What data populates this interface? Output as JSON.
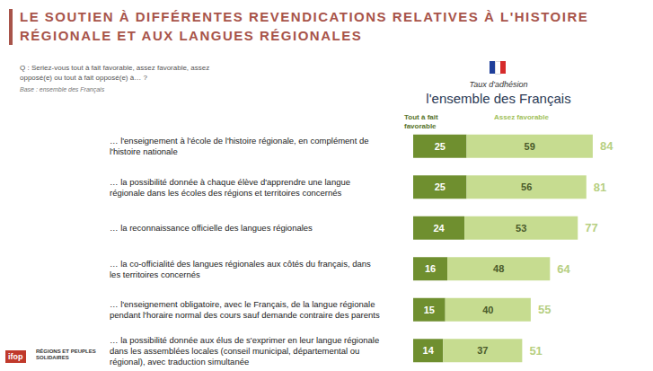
{
  "chart_data": {
    "type": "bar",
    "orientation": "horizontal",
    "stacked": true,
    "data_labels": true,
    "tick_labels": false,
    "grid": false,
    "title": "LE SOUTIEN À DIFFÉRENTES REVENDICATIONS RELATIVES À L'HISTOIRE RÉGIONALE ET AUX LANGUES RÉGIONALES",
    "subtitle": "Q : Seriez-vous tout à fait favorable, assez favorable, assez opposé(e) ou tout à fait opposé(e) à… ?",
    "base": "Base : ensemble des Français",
    "panel_label": "Taux d'adhésion",
    "panel_title": "l'ensemble des Français",
    "sources": [
      "ifop",
      "RÉGIONS ET PEUPLES SOLIDAIRES"
    ],
    "categories": [
      "… l'enseignement à l'école de l'histoire régionale, en complément de l'histoire nationale",
      "… la possibilité donnée à chaque élève d'apprendre une langue régionale dans les écoles des régions et territoires concernés",
      "… la reconnaissance officielle des langues régionales",
      "… la co-officialité des langues régionales aux côtés du français, dans les territoires concernés",
      "… l'enseignement obligatoire, avec le Français, de la langue régionale pendant l'horaire normal des cours sauf demande contraire des parents",
      "… la possibilité donnée aux élus de s'exprimer en leur langue régionale dans les assemblées locales (conseil municipal, départemental ou régional), avec traduction simultanée"
    ],
    "series": [
      {
        "name": "Tout à fait favorable",
        "color": "#6f8f2f",
        "values": [
          25,
          25,
          24,
          16,
          15,
          14
        ]
      },
      {
        "name": "Assez favorable",
        "color": "#c6dc90",
        "values": [
          59,
          56,
          53,
          48,
          40,
          37
        ]
      }
    ],
    "totals": [
      84,
      81,
      77,
      64,
      55,
      51
    ],
    "totals_color": "#a3c25e",
    "xlim": [
      0,
      100
    ]
  }
}
